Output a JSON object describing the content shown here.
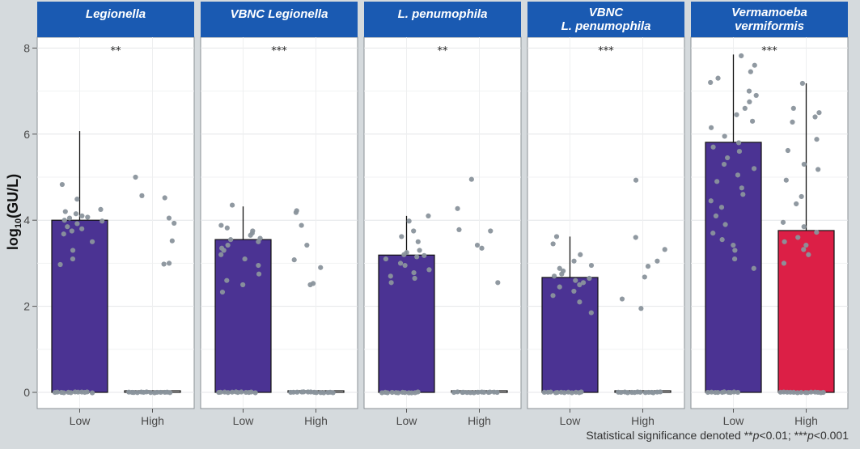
{
  "chart_data": {
    "type": "bar",
    "ylabel": "log10(GU/L)",
    "ylabel_base": "log",
    "ylabel_sub": "10",
    "ylabel_rest": "(GU/L)",
    "ylim": [
      0,
      8.3
    ],
    "yticks": [
      0,
      2,
      4,
      6,
      8
    ],
    "categories": [
      "Low",
      "High"
    ],
    "colors": {
      "low": "#4b3393",
      "high": "#dc1f46",
      "empty": "#ffffff",
      "strip": "#1a5ab2",
      "points": "#8a949c"
    },
    "panels": [
      {
        "title_lines": [
          "Legionella"
        ],
        "significance": "**",
        "bars": [
          {
            "category": "Low",
            "value": 4.0,
            "error_top": 6.07,
            "fill": "low",
            "points": [
              0,
              0,
              0,
              0,
              0,
              0,
              0,
              0,
              0,
              0,
              0,
              0,
              4.83,
              4.49,
              4.25,
              4.2,
              4.15,
              4.1,
              4.07,
              4.05,
              4.0,
              3.98,
              3.92,
              3.85,
              3.8,
              3.75,
              3.68,
              3.5,
              3.3,
              3.1,
              2.97
            ]
          },
          {
            "category": "High",
            "value": 0.02,
            "error_top": null,
            "fill": "empty",
            "points": [
              0,
              0,
              0,
              0,
              0,
              0,
              0,
              0,
              0,
              0,
              0,
              0,
              0,
              0,
              5.0,
              4.57,
              4.52,
              4.05,
              3.93,
              3.52,
              3.0,
              2.98
            ]
          }
        ]
      },
      {
        "title_lines": [
          "VBNC Legionella"
        ],
        "significance": "***",
        "bars": [
          {
            "category": "Low",
            "value": 3.55,
            "error_top": 4.32,
            "fill": "low",
            "points": [
              0,
              0,
              0,
              0,
              0,
              0,
              0,
              0,
              0,
              0,
              0,
              0,
              4.35,
              3.88,
              3.82,
              3.75,
              3.7,
              3.65,
              3.58,
              3.55,
              3.5,
              3.42,
              3.35,
              3.3,
              3.2,
              3.1,
              2.95,
              2.75,
              2.6,
              2.5,
              2.33
            ]
          },
          {
            "category": "High",
            "value": 0.02,
            "error_top": null,
            "fill": "empty",
            "points": [
              0,
              0,
              0,
              0,
              0,
              0,
              0,
              0,
              0,
              0,
              0,
              0,
              0,
              0,
              4.22,
              4.18,
              3.88,
              3.42,
              3.08,
              2.9,
              2.53,
              2.5
            ]
          }
        ]
      },
      {
        "title_lines": [
          "L. penumophila"
        ],
        "significance": "**",
        "bars": [
          {
            "category": "Low",
            "value": 3.19,
            "error_top": 4.1,
            "fill": "low",
            "points": [
              0,
              0,
              0,
              0,
              0,
              0,
              0,
              0,
              0,
              0,
              0,
              0,
              4.1,
              3.98,
              3.75,
              3.62,
              3.5,
              3.3,
              3.25,
              3.2,
              3.18,
              3.15,
              3.1,
              3.0,
              2.95,
              2.85,
              2.78,
              2.7,
              2.65,
              2.55
            ]
          },
          {
            "category": "High",
            "value": 0.02,
            "error_top": null,
            "fill": "empty",
            "points": [
              0,
              0,
              0,
              0,
              0,
              0,
              0,
              0,
              0,
              0,
              0,
              0,
              0,
              0,
              4.95,
              4.27,
              3.78,
              3.75,
              3.42,
              3.35,
              2.55
            ]
          }
        ]
      },
      {
        "title_lines": [
          "VBNC",
          "L. penumophila"
        ],
        "significance": "***",
        "bars": [
          {
            "category": "Low",
            "value": 2.67,
            "error_top": 3.62,
            "fill": "low",
            "points": [
              0,
              0,
              0,
              0,
              0,
              0,
              0,
              0,
              0,
              0,
              0,
              0,
              3.62,
              3.45,
              3.2,
              3.05,
              2.95,
              2.88,
              2.82,
              2.75,
              2.7,
              2.65,
              2.6,
              2.55,
              2.5,
              2.45,
              2.35,
              2.25,
              2.1,
              1.85
            ]
          },
          {
            "category": "High",
            "value": 0.02,
            "error_top": null,
            "fill": "empty",
            "points": [
              0,
              0,
              0,
              0,
              0,
              0,
              0,
              0,
              0,
              0,
              0,
              0,
              0,
              0,
              4.93,
              3.6,
              3.32,
              3.05,
              2.93,
              2.68,
              2.17,
              1.95
            ]
          }
        ]
      },
      {
        "title_lines": [
          "Vermamoeba",
          "vermiformis"
        ],
        "significance": "***",
        "bars": [
          {
            "category": "Low",
            "value": 5.81,
            "error_top": 7.85,
            "fill": "low",
            "points": [
              0,
              0,
              0,
              0,
              0,
              0,
              0,
              0,
              0,
              0,
              7.82,
              7.6,
              7.45,
              7.3,
              7.2,
              7.0,
              6.9,
              6.75,
              6.6,
              6.45,
              6.3,
              6.15,
              5.95,
              5.8,
              5.7,
              5.6,
              5.45,
              5.3,
              5.2,
              5.05,
              4.9,
              4.75,
              4.6,
              4.45,
              4.3,
              4.1,
              3.9,
              3.7,
              3.55,
              3.42,
              3.3,
              3.1,
              2.88
            ]
          },
          {
            "category": "High",
            "value": 3.76,
            "error_top": 7.18,
            "fill": "high",
            "points": [
              0,
              0,
              0,
              0,
              0,
              0,
              0,
              0,
              0,
              0,
              0,
              0,
              0,
              0,
              7.18,
              6.6,
              6.5,
              6.4,
              6.28,
              5.88,
              5.62,
              5.3,
              5.18,
              4.93,
              4.55,
              4.38,
              3.95,
              3.85,
              3.72,
              3.6,
              3.5,
              3.42,
              3.32,
              3.2,
              3.0
            ]
          }
        ]
      }
    ],
    "footnote": {
      "prefix": "Statistical significance denoted **",
      "p1": "p",
      "mid": "<0.01; ***",
      "p2": "p",
      "suffix": "<0.001"
    }
  }
}
